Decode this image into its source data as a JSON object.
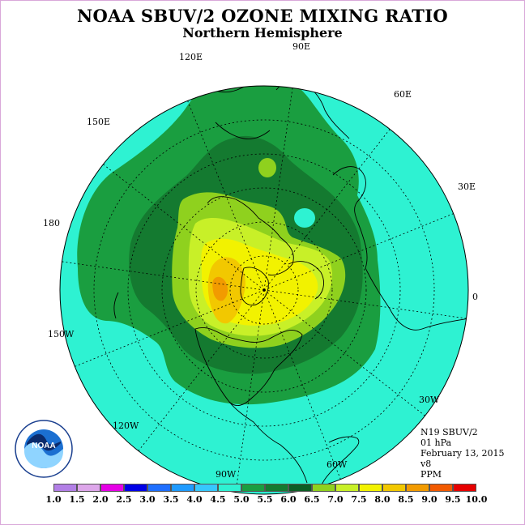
{
  "title": "NOAA SBUV/2 OZONE MIXING RATIO",
  "subtitle": "Northern Hemisphere",
  "longitude_labels": {
    "lon_90e": "90E",
    "lon_60e": "60E",
    "lon_30e": "30E",
    "lon_0": "0",
    "lon_30w": "30W",
    "lon_60w": "60W",
    "lon_90w": "90W",
    "lon_120w": "120W",
    "lon_150w": "150W",
    "lon_180": "180",
    "lon_150e": "150E",
    "lon_120e": "120E"
  },
  "info": {
    "satellite": "N19 SBUV/2",
    "pressure": "01 hPa",
    "date": "February 13, 2015",
    "version": "v8",
    "units": "PPM"
  },
  "logo": {
    "text": "NOAA",
    "ring_text": "NATIONAL OCEANIC AND ATMOSPHERIC ADMINISTRATION · U.S. DEPARTMENT OF COMMERCE"
  },
  "color_scale": {
    "labels": [
      "1.0",
      "1.5",
      "2.0",
      "2.5",
      "3.0",
      "3.5",
      "4.0",
      "4.5",
      "5.0",
      "5.5",
      "6.0",
      "6.5",
      "7.0",
      "7.5",
      "8.0",
      "8.5",
      "9.0",
      "9.5",
      "10.0"
    ],
    "colors": [
      "#b27fe6",
      "#dda6ea",
      "#e600e6",
      "#0000e6",
      "#1f6fff",
      "#1f9bff",
      "#36c7ff",
      "#2ef2d2",
      "#1a9e40",
      "#147a30",
      "#0c5e24",
      "#8fd11e",
      "#c8f028",
      "#f2f200",
      "#f2c800",
      "#f29b00",
      "#f25a00",
      "#e60000",
      "#7a4a2a"
    ]
  }
}
